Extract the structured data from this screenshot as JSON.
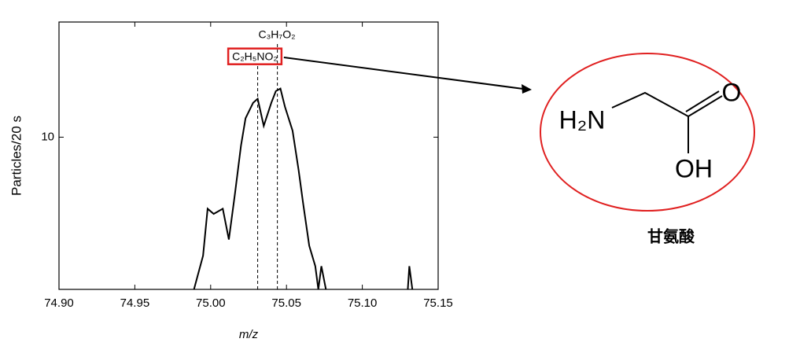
{
  "chart_data": {
    "type": "line",
    "y_label": "Particles/20 s",
    "x_label": "m/z",
    "log_y": true,
    "xlim": [
      74.9,
      75.15
    ],
    "xticks": [
      {
        "value": 74.9,
        "label": "74.90"
      },
      {
        "value": 74.95,
        "label": "74.95"
      },
      {
        "value": 75.0,
        "label": "75.00"
      },
      {
        "value": 75.05,
        "label": "75.05"
      },
      {
        "value": 75.1,
        "label": "75.10"
      },
      {
        "value": 75.15,
        "label": "75.15"
      }
    ],
    "ylim": [
      4,
      20
    ],
    "yticks": [
      10
    ],
    "series": [
      {
        "color": "#000000",
        "x": [
          74.989,
          74.995,
          74.998,
          75.002,
          75.005,
          75.008,
          75.012,
          75.016,
          75.02,
          75.023,
          75.028,
          75.031,
          75.035,
          75.04,
          75.043,
          75.046,
          75.049,
          75.054,
          75.058,
          75.061,
          75.065,
          75.069,
          75.071,
          75.073,
          75.076,
          null,
          75.13,
          75.131,
          75.133
        ],
        "values": [
          4,
          4.9,
          6.5,
          6.3,
          6.4,
          6.5,
          5.4,
          7.1,
          9.5,
          11.2,
          12.3,
          12.6,
          10.7,
          12.3,
          13.2,
          13.4,
          12.0,
          10.4,
          8.2,
          6.7,
          5.2,
          4.6,
          4,
          4.6,
          4,
          null,
          4,
          4.6,
          4
        ]
      }
    ],
    "annotations": [
      {
        "label": "C₃H₇O₂",
        "x": 75.044
      },
      {
        "label": "C₂H₅NO₂",
        "x": 75.031
      }
    ]
  },
  "diagram": {
    "labels": {
      "amine": "H₂N",
      "carbonyl": "O",
      "hydroxyl": "OH",
      "name": "甘氨酸"
    }
  }
}
